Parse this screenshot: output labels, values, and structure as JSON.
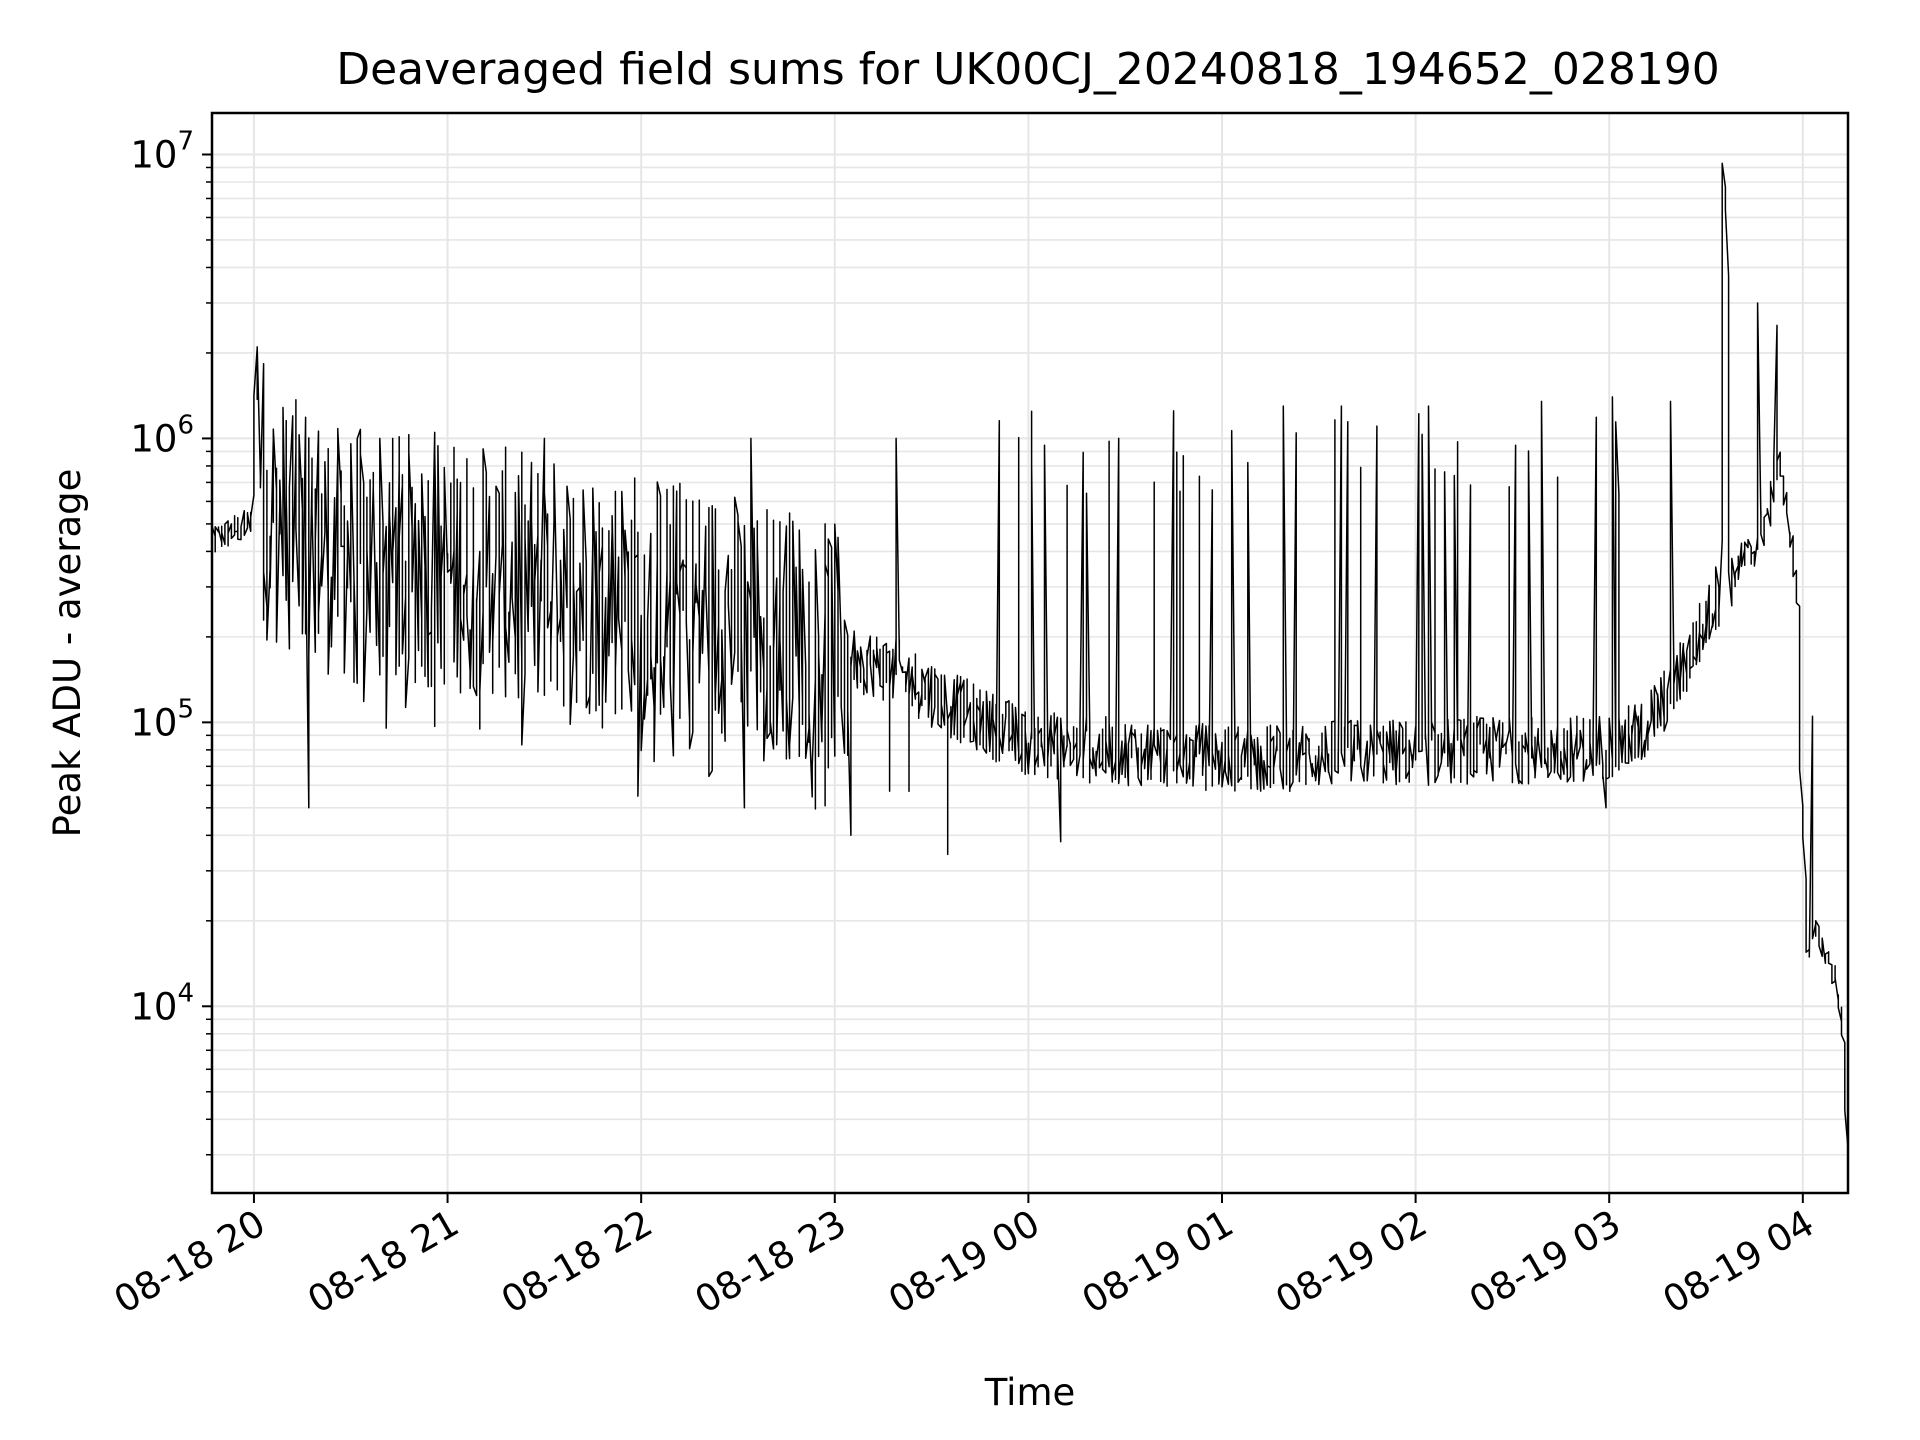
{
  "chart_data": {
    "type": "line",
    "title": "Deaveraged field sums for UK00CJ_20240818_194652_028190",
    "xlabel": "Time",
    "ylabel": "Peak ADU - average",
    "yscale": "log",
    "ylim": [
      2200,
      14000000
    ],
    "xlim": [
      "2024-08-18 19:47",
      "2024-08-19 04:14"
    ],
    "grid": true,
    "line_color": "#000000",
    "x_ticks": [
      {
        "t": "2024-08-18 20:00",
        "label": "08-18 20"
      },
      {
        "t": "2024-08-18 21:00",
        "label": "08-18 21"
      },
      {
        "t": "2024-08-18 22:00",
        "label": "08-18 22"
      },
      {
        "t": "2024-08-18 23:00",
        "label": "08-18 23"
      },
      {
        "t": "2024-08-19 00:00",
        "label": "08-19 00"
      },
      {
        "t": "2024-08-19 01:00",
        "label": "08-19 01"
      },
      {
        "t": "2024-08-19 02:00",
        "label": "08-19 02"
      },
      {
        "t": "2024-08-19 03:00",
        "label": "08-19 03"
      },
      {
        "t": "2024-08-19 04:00",
        "label": "08-19 04"
      }
    ],
    "y_ticks": [
      {
        "value": 10000,
        "base": "10",
        "exp": "4"
      },
      {
        "value": 100000,
        "base": "10",
        "exp": "5"
      },
      {
        "value": 1000000,
        "base": "10",
        "exp": "6"
      },
      {
        "value": 10000000,
        "base": "10",
        "exp": "7"
      }
    ],
    "series": [
      {
        "x": [
          "2024-08-18 19:47",
          "2024-08-18 19:50",
          "2024-08-18 19:55",
          "2024-08-18 20:00",
          "2024-08-18 20:01",
          "2024-08-18 20:02",
          "2024-08-18 20:04",
          "2024-08-18 20:10",
          "2024-08-18 20:17",
          "2024-08-18 20:25",
          "2024-08-18 20:40",
          "2024-08-18 21:00",
          "2024-08-18 21:20",
          "2024-08-18 21:40",
          "2024-08-18 22:00",
          "2024-08-18 22:20",
          "2024-08-18 22:40",
          "2024-08-18 23:00",
          "2024-08-18 23:20",
          "2024-08-18 23:40",
          "2024-08-19 00:00",
          "2024-08-19 00:20",
          "2024-08-19 00:40",
          "2024-08-19 01:00",
          "2024-08-19 01:20",
          "2024-08-19 01:40",
          "2024-08-19 02:00",
          "2024-08-19 02:20",
          "2024-08-19 02:40",
          "2024-08-19 03:00",
          "2024-08-19 03:10",
          "2024-08-19 03:20",
          "2024-08-19 03:30",
          "2024-08-19 03:35",
          "2024-08-19 03:36",
          "2024-08-19 03:37",
          "2024-08-19 03:38",
          "2024-08-19 03:40",
          "2024-08-19 03:45",
          "2024-08-19 03:50",
          "2024-08-19 03:53",
          "2024-08-19 03:55",
          "2024-08-19 03:57",
          "2024-08-19 03:59",
          "2024-08-19 04:00",
          "2024-08-19 04:02",
          "2024-08-19 04:05",
          "2024-08-19 04:08",
          "2024-08-19 04:11",
          "2024-08-19 04:13",
          "2024-08-19 04:14"
        ],
        "y": [
          420000,
          450000,
          480000,
          500000,
          2100000,
          1000000,
          550000,
          500000,
          480000,
          400000,
          380000,
          360000,
          330000,
          300000,
          280000,
          250000,
          220000,
          180000,
          150000,
          110000,
          85000,
          80000,
          78000,
          75000,
          75000,
          78000,
          78000,
          80000,
          80000,
          82000,
          90000,
          130000,
          220000,
          300000,
          9000000,
          6000000,
          300000,
          350000,
          400000,
          550000,
          900000,
          600000,
          450000,
          260000,
          60000,
          16000,
          18000,
          15000,
          12000,
          8000,
          3000
        ],
        "spikes": [
          {
            "x": "2024-08-18 20:02",
            "y": 2100000
          },
          {
            "x": "2024-08-18 20:12",
            "y": 1200000
          },
          {
            "x": "2024-08-18 20:17",
            "y": 50000
          },
          {
            "x": "2024-08-18 20:40",
            "y": 1000000
          },
          {
            "x": "2024-08-18 20:56",
            "y": 1050000
          },
          {
            "x": "2024-08-18 21:30",
            "y": 1000000
          },
          {
            "x": "2024-08-18 22:00",
            "y": 55000
          },
          {
            "x": "2024-08-18 22:32",
            "y": 50000
          },
          {
            "x": "2024-08-18 22:35",
            "y": 1000000
          },
          {
            "x": "2024-08-18 23:05",
            "y": 40000
          },
          {
            "x": "2024-08-18 23:20",
            "y": 1000000
          },
          {
            "x": "2024-08-19 00:10",
            "y": 38000
          },
          {
            "x": "2024-08-19 00:28",
            "y": 1000000
          },
          {
            "x": "2024-08-19 00:45",
            "y": 1250000
          },
          {
            "x": "2024-08-19 01:20",
            "y": 1300000
          },
          {
            "x": "2024-08-19 01:37",
            "y": 1300000
          },
          {
            "x": "2024-08-19 02:05",
            "y": 1300000
          },
          {
            "x": "2024-08-19 02:40",
            "y": 1350000
          },
          {
            "x": "2024-08-19 02:59",
            "y": 50000
          },
          {
            "x": "2024-08-19 03:02",
            "y": 1400000
          },
          {
            "x": "2024-08-19 03:20",
            "y": 1350000
          },
          {
            "x": "2024-08-19 03:36",
            "y": 9300000
          },
          {
            "x": "2024-08-19 03:47",
            "y": 3000000
          },
          {
            "x": "2024-08-19 03:52",
            "y": 2500000
          },
          {
            "x": "2024-08-19 04:03",
            "y": 105000
          }
        ]
      }
    ]
  }
}
